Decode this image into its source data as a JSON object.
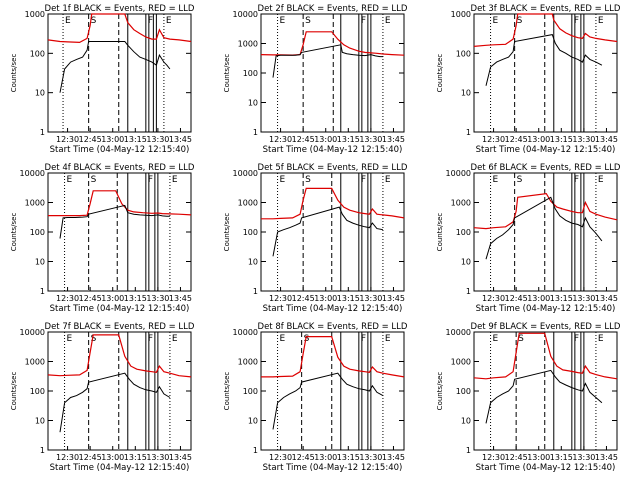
{
  "colors": {
    "events": "#000000",
    "lld": "#dd0000",
    "axes": "#000000",
    "dotted": "#000000"
  },
  "chart_data": [
    {
      "type": "line",
      "title": "Det 1f BLACK = Events, RED = LLD",
      "xlabel": "Start Time (04-May-12 12:15:40)",
      "ylabel": "Counts/sec",
      "xticks": [
        "12:30",
        "12:45",
        "13:00",
        "13:15",
        "13:30",
        "13:45"
      ],
      "xlim": [
        "12:17",
        "13:52"
      ],
      "yscale": "log",
      "ylim": [
        1,
        1000
      ],
      "yticks": [
        "1",
        "10",
        "100",
        "1000"
      ],
      "markers": [
        "E",
        "S",
        "F",
        "E"
      ],
      "events_x": [
        "12:25",
        "12:28",
        "12:32",
        "12:36",
        "12:40",
        "12:43",
        "12:44",
        "13:08",
        "13:10",
        "13:14",
        "13:18",
        "13:22",
        "13:26",
        "13:29",
        "13:31",
        "13:34",
        "13:36",
        "13:38"
      ],
      "events_y": [
        10,
        40,
        60,
        70,
        80,
        120,
        200,
        200,
        160,
        110,
        80,
        70,
        60,
        50,
        90,
        60,
        50,
        40
      ],
      "lld_x": [
        "12:17",
        "12:25",
        "12:30",
        "12:38",
        "12:43",
        "12:45",
        "12:46",
        "13:08",
        "13:10",
        "13:14",
        "13:18",
        "13:22",
        "13:26",
        "13:29",
        "13:31",
        "13:34",
        "13:38",
        "13:44",
        "13:52"
      ],
      "lld_y": [
        220,
        200,
        195,
        190,
        240,
        500,
        1000,
        1000,
        600,
        400,
        320,
        260,
        230,
        230,
        400,
        250,
        230,
        220,
        200
      ],
      "dotted_x": [
        "12:27",
        "13:34"
      ],
      "dashed_x": [
        "12:44",
        "13:04"
      ],
      "solid_x": [
        "13:10",
        "13:22",
        "13:24",
        "13:27",
        "13:29"
      ]
    },
    {
      "type": "line",
      "title": "Det 2f BLACK = Events, RED = LLD",
      "xlabel": "Start Time (04-May-12 12:15:40)",
      "ylabel": "Counts/sec",
      "xticks": [
        "12:30",
        "12:45",
        "13:00",
        "13:15",
        "13:30",
        "13:45"
      ],
      "xlim": [
        "12:17",
        "13:52"
      ],
      "yscale": "log",
      "ylim": [
        1,
        10000
      ],
      "yticks": [
        "1",
        "10",
        "100",
        "1000",
        "10000"
      ],
      "markers": [
        "E",
        "S",
        "F",
        "E"
      ],
      "events_x": [
        "12:25",
        "12:27",
        "12:30",
        "12:35",
        "12:40",
        "12:43",
        "12:44",
        "13:10",
        "13:11",
        "13:14",
        "13:18",
        "13:22",
        "13:26",
        "13:30",
        "13:33",
        "13:36",
        "13:38"
      ],
      "events_y": [
        70,
        380,
        400,
        400,
        400,
        420,
        500,
        900,
        500,
        450,
        420,
        400,
        390,
        420,
        380,
        360,
        360
      ],
      "lld_x": [
        "12:17",
        "12:25",
        "12:30",
        "12:38",
        "12:43",
        "12:45",
        "12:47",
        "13:04",
        "13:08",
        "13:12",
        "13:16",
        "13:22",
        "13:26",
        "13:30",
        "13:33",
        "13:38",
        "13:44",
        "13:52"
      ],
      "lld_y": [
        420,
        410,
        410,
        405,
        420,
        900,
        2500,
        2500,
        1400,
        900,
        700,
        550,
        500,
        480,
        470,
        440,
        420,
        400
      ],
      "dotted_x": [
        "12:28",
        "13:38"
      ],
      "dashed_x": [
        "12:45",
        "13:05"
      ],
      "solid_x": [
        "13:10",
        "13:22",
        "13:24",
        "13:28",
        "13:30"
      ]
    },
    {
      "type": "line",
      "title": "Det 3f BLACK = Events, RED = LLD",
      "xlabel": "Start Time (04-May-12 12:15:40)",
      "ylabel": "Counts/sec",
      "xticks": [
        "12:30",
        "12:45",
        "13:00",
        "13:15",
        "13:30",
        "13:45"
      ],
      "xlim": [
        "12:17",
        "13:52"
      ],
      "yscale": "log",
      "ylim": [
        1,
        1000
      ],
      "yticks": [
        "1",
        "10",
        "100",
        "1000"
      ],
      "markers": [
        "E",
        "S",
        "F",
        "E"
      ],
      "events_x": [
        "12:25",
        "12:28",
        "12:32",
        "12:36",
        "12:40",
        "12:43",
        "12:44",
        "13:09",
        "13:11",
        "13:14",
        "13:18",
        "13:22",
        "13:26",
        "13:29",
        "13:31",
        "13:34",
        "13:38",
        "13:42"
      ],
      "events_y": [
        15,
        45,
        60,
        70,
        80,
        110,
        200,
        300,
        180,
        120,
        100,
        80,
        70,
        60,
        90,
        70,
        60,
        50
      ],
      "lld_x": [
        "12:17",
        "12:25",
        "12:30",
        "12:38",
        "12:43",
        "12:45",
        "12:46",
        "13:09",
        "13:10",
        "13:14",
        "13:18",
        "13:22",
        "13:26",
        "13:29",
        "13:31",
        "13:34",
        "13:38",
        "13:44",
        "13:52"
      ],
      "lld_y": [
        150,
        160,
        165,
        170,
        230,
        500,
        1000,
        1000,
        700,
        420,
        330,
        280,
        250,
        240,
        320,
        260,
        240,
        220,
        200
      ],
      "dotted_x": [
        "12:28",
        "13:38"
      ],
      "dashed_x": [
        "12:44",
        "13:04"
      ],
      "solid_x": [
        "13:10",
        "13:22",
        "13:24",
        "13:28",
        "13:30"
      ]
    },
    {
      "type": "line",
      "title": "Det 4f BLACK = Events, RED = LLD",
      "xlabel": "Start Time (04-May-12 12:15:40)",
      "ylabel": "Counts/sec",
      "xticks": [
        "12:30",
        "12:45",
        "13:00",
        "13:15",
        "13:30",
        "13:45"
      ],
      "xlim": [
        "12:17",
        "13:52"
      ],
      "yscale": "log",
      "ylim": [
        1,
        10000
      ],
      "yticks": [
        "1",
        "10",
        "100",
        "1000",
        "10000"
      ],
      "markers": [
        "E",
        "S",
        "F",
        "E"
      ],
      "events_x": [
        "12:25",
        "12:27",
        "12:30",
        "12:35",
        "12:40",
        "12:43",
        "12:44",
        "13:08",
        "13:10",
        "13:14",
        "13:18",
        "13:22",
        "13:26",
        "13:30",
        "13:33",
        "13:36",
        "13:38"
      ],
      "events_y": [
        60,
        300,
        310,
        310,
        320,
        330,
        400,
        800,
        450,
        400,
        380,
        370,
        360,
        380,
        350,
        340,
        340
      ],
      "lld_x": [
        "12:17",
        "12:25",
        "12:30",
        "12:38",
        "12:43",
        "12:45",
        "12:47",
        "13:02",
        "13:06",
        "13:10",
        "13:14",
        "13:20",
        "13:26",
        "13:30",
        "13:33",
        "13:38",
        "13:44",
        "13:52"
      ],
      "lld_y": [
        360,
        360,
        360,
        360,
        370,
        900,
        2500,
        2500,
        900,
        550,
        480,
        450,
        430,
        440,
        420,
        410,
        400,
        380
      ],
      "dotted_x": [
        "12:28",
        "13:38"
      ],
      "dashed_x": [
        "12:44",
        "13:03"
      ],
      "solid_x": [
        "13:10",
        "13:22",
        "13:24",
        "13:28",
        "13:30"
      ]
    },
    {
      "type": "line",
      "title": "Det 5f BLACK = Events, RED = LLD",
      "xlabel": "Start Time (04-May-12 12:15:40)",
      "ylabel": "Counts/sec",
      "xticks": [
        "12:30",
        "12:45",
        "13:00",
        "13:15",
        "13:30",
        "13:45"
      ],
      "xlim": [
        "12:17",
        "13:52"
      ],
      "yscale": "log",
      "ylim": [
        1,
        10000
      ],
      "yticks": [
        "1",
        "10",
        "100",
        "1000",
        "10000"
      ],
      "markers": [
        "E",
        "S",
        "F",
        "E"
      ],
      "events_x": [
        "12:25",
        "12:28",
        "12:32",
        "12:36",
        "12:40",
        "12:43",
        "12:44",
        "13:09",
        "13:11",
        "13:14",
        "13:18",
        "13:22",
        "13:26",
        "13:29",
        "13:31",
        "13:34",
        "13:38"
      ],
      "events_y": [
        15,
        100,
        120,
        140,
        170,
        200,
        300,
        700,
        400,
        250,
        200,
        170,
        150,
        140,
        200,
        130,
        120
      ],
      "lld_x": [
        "12:17",
        "12:25",
        "12:30",
        "12:38",
        "12:43",
        "12:45",
        "12:47",
        "13:04",
        "13:08",
        "13:12",
        "13:16",
        "13:22",
        "13:26",
        "13:29",
        "13:31",
        "13:34",
        "13:38",
        "13:44",
        "13:52"
      ],
      "lld_y": [
        280,
        280,
        290,
        300,
        400,
        1200,
        3000,
        3000,
        1200,
        700,
        550,
        450,
        420,
        400,
        600,
        400,
        380,
        350,
        300
      ],
      "dotted_x": [
        "12:28",
        "13:38"
      ],
      "dashed_x": [
        "12:45",
        "13:04"
      ],
      "solid_x": [
        "13:10",
        "13:22",
        "13:24",
        "13:28",
        "13:30"
      ]
    },
    {
      "type": "line",
      "title": "Det 6f BLACK = Events, RED = LLD",
      "xlabel": "Start Time (04-May-12 12:15:40)",
      "ylabel": "Counts/sec",
      "xticks": [
        "12:30",
        "12:45",
        "13:00",
        "13:15",
        "13:30",
        "13:45"
      ],
      "xlim": [
        "12:17",
        "13:52"
      ],
      "yscale": "log",
      "ylim": [
        1,
        10000
      ],
      "yticks": [
        "1",
        "10",
        "100",
        "1000",
        "10000"
      ],
      "markers": [
        "E",
        "S",
        "F",
        "E"
      ],
      "events_x": [
        "12:25",
        "12:28",
        "12:32",
        "12:36",
        "12:40",
        "12:43",
        "12:44",
        "13:08",
        "13:11",
        "13:14",
        "13:18",
        "13:22",
        "13:26",
        "13:29",
        "13:31",
        "13:34",
        "13:38",
        "13:42"
      ],
      "events_y": [
        12,
        40,
        60,
        80,
        120,
        180,
        300,
        1500,
        600,
        350,
        250,
        200,
        180,
        150,
        300,
        150,
        90,
        50
      ],
      "lld_x": [
        "12:17",
        "12:25",
        "12:30",
        "12:38",
        "12:43",
        "12:45",
        "12:46",
        "13:05",
        "13:08",
        "13:12",
        "13:16",
        "13:22",
        "13:26",
        "13:29",
        "13:31",
        "13:34",
        "13:38",
        "13:44",
        "13:52"
      ],
      "lld_y": [
        140,
        130,
        140,
        150,
        220,
        500,
        1500,
        2000,
        1100,
        700,
        600,
        500,
        450,
        450,
        1000,
        500,
        400,
        320,
        260
      ],
      "dotted_x": [
        "12:28",
        "13:38"
      ],
      "dashed_x": [
        "12:44",
        "13:04"
      ],
      "solid_x": [
        "13:10",
        "13:22",
        "13:24",
        "13:28",
        "13:30"
      ]
    },
    {
      "type": "line",
      "title": "Det 7f BLACK = Events, RED = LLD",
      "xlabel": "Start Time (04-May-12 12:15:40)",
      "ylabel": "Counts/sec",
      "xticks": [
        "12:30",
        "12:45",
        "13:00",
        "13:15",
        "13:30",
        "13:45"
      ],
      "xlim": [
        "12:17",
        "13:52"
      ],
      "yscale": "log",
      "ylim": [
        1,
        10000
      ],
      "yticks": [
        "1",
        "10",
        "100",
        "1000",
        "10000"
      ],
      "markers": [
        "E",
        "S",
        "F",
        "E"
      ],
      "events_x": [
        "12:25",
        "12:28",
        "12:32",
        "12:36",
        "12:40",
        "12:43",
        "12:44",
        "13:08",
        "13:11",
        "13:14",
        "13:18",
        "13:22",
        "13:26",
        "13:29",
        "13:31",
        "13:34",
        "13:38"
      ],
      "events_y": [
        4,
        40,
        60,
        70,
        90,
        120,
        200,
        400,
        250,
        170,
        130,
        110,
        100,
        90,
        140,
        80,
        60
      ],
      "lld_x": [
        "12:17",
        "12:25",
        "12:30",
        "12:38",
        "12:43",
        "12:45",
        "12:47",
        "13:04",
        "13:08",
        "13:12",
        "13:16",
        "13:22",
        "13:26",
        "13:29",
        "13:31",
        "13:34",
        "13:38",
        "13:44",
        "13:52"
      ],
      "lld_y": [
        350,
        330,
        340,
        350,
        500,
        2000,
        8000,
        8000,
        1500,
        700,
        550,
        480,
        450,
        430,
        700,
        450,
        400,
        330,
        300
      ],
      "dotted_x": [
        "12:28",
        "13:38"
      ],
      "dashed_x": [
        "12:44",
        "13:04"
      ],
      "solid_x": [
        "13:10",
        "13:22",
        "13:24",
        "13:28",
        "13:30"
      ]
    },
    {
      "type": "line",
      "title": "Det 8f BLACK = Events, RED = LLD",
      "xlabel": "Start Time (04-May-12 12:15:40)",
      "ylabel": "Counts/sec",
      "xticks": [
        "12:30",
        "12:45",
        "13:00",
        "13:15",
        "13:30",
        "13:45"
      ],
      "xlim": [
        "12:17",
        "13:52"
      ],
      "yscale": "log",
      "ylim": [
        1,
        10000
      ],
      "yticks": [
        "1",
        "10",
        "100",
        "1000",
        "10000"
      ],
      "markers": [
        "E",
        "S",
        "F",
        "E"
      ],
      "events_x": [
        "12:25",
        "12:28",
        "12:32",
        "12:36",
        "12:40",
        "12:43",
        "12:44",
        "13:08",
        "13:11",
        "13:14",
        "13:18",
        "13:22",
        "13:26",
        "13:29",
        "13:31",
        "13:34",
        "13:38"
      ],
      "events_y": [
        5,
        40,
        60,
        80,
        100,
        130,
        200,
        400,
        250,
        170,
        140,
        120,
        110,
        100,
        150,
        90,
        70
      ],
      "lld_x": [
        "12:17",
        "12:25",
        "12:30",
        "12:38",
        "12:43",
        "12:45",
        "12:47",
        "13:04",
        "13:08",
        "13:12",
        "13:16",
        "13:22",
        "13:26",
        "13:29",
        "13:31",
        "13:34",
        "13:38",
        "13:44",
        "13:52"
      ],
      "lld_y": [
        300,
        300,
        310,
        320,
        450,
        1800,
        7000,
        7000,
        1400,
        700,
        550,
        480,
        450,
        430,
        650,
        450,
        400,
        350,
        300
      ],
      "dotted_x": [
        "12:28",
        "13:38"
      ],
      "dashed_x": [
        "12:44",
        "13:04"
      ],
      "solid_x": [
        "13:10",
        "13:22",
        "13:24",
        "13:28",
        "13:30"
      ]
    },
    {
      "type": "line",
      "title": "Det 9f BLACK = Events, RED = LLD",
      "xlabel": "Start Time (04-May-12 12:15:40)",
      "ylabel": "Counts/sec",
      "xticks": [
        "12:30",
        "12:45",
        "13:00",
        "13:15",
        "13:30",
        "13:45"
      ],
      "xlim": [
        "12:17",
        "13:52"
      ],
      "yscale": "log",
      "ylim": [
        1,
        10000
      ],
      "yticks": [
        "1",
        "10",
        "100",
        "1000",
        "10000"
      ],
      "markers": [
        "E",
        "S",
        "F",
        "E"
      ],
      "events_x": [
        "12:25",
        "12:28",
        "12:32",
        "12:36",
        "12:40",
        "12:43",
        "12:44",
        "13:08",
        "13:11",
        "13:14",
        "13:18",
        "13:22",
        "13:26",
        "13:29",
        "13:31",
        "13:34",
        "13:38",
        "13:42"
      ],
      "events_y": [
        8,
        40,
        60,
        80,
        100,
        150,
        250,
        500,
        300,
        200,
        160,
        130,
        110,
        100,
        180,
        90,
        60,
        40
      ],
      "lld_x": [
        "12:17",
        "12:25",
        "12:30",
        "12:38",
        "12:43",
        "12:45",
        "12:47",
        "13:04",
        "13:08",
        "13:12",
        "13:16",
        "13:22",
        "13:26",
        "13:29",
        "13:31",
        "13:34",
        "13:38",
        "13:44",
        "13:52"
      ],
      "lld_y": [
        280,
        260,
        280,
        300,
        450,
        2000,
        9000,
        9000,
        1500,
        700,
        520,
        460,
        420,
        400,
        700,
        420,
        360,
        300,
        260
      ],
      "dotted_x": [
        "12:28",
        "13:38"
      ],
      "dashed_x": [
        "12:45",
        "13:04"
      ],
      "solid_x": [
        "13:10",
        "13:22",
        "13:24",
        "13:28",
        "13:30"
      ]
    }
  ]
}
